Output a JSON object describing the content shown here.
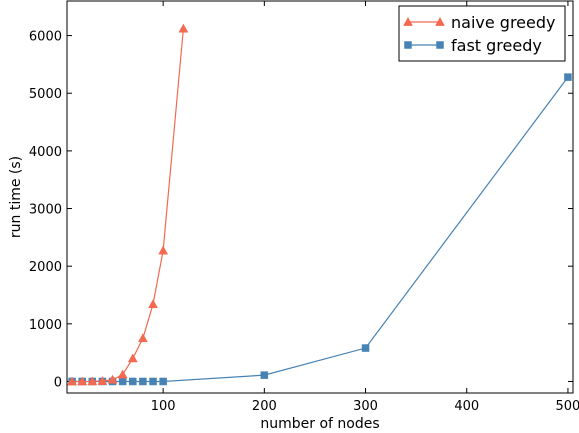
{
  "chart_data": {
    "type": "line",
    "title": "",
    "xlabel": "number of nodes",
    "ylabel": "run time (s)",
    "xlim": [
      5,
      505
    ],
    "ylim": [
      -200,
      6600
    ],
    "xticks": [
      100,
      200,
      300,
      400,
      500
    ],
    "yticks": [
      0,
      1000,
      2000,
      3000,
      4000,
      5000,
      6000
    ],
    "grid": false,
    "legend_position": "top-right",
    "series": [
      {
        "name": "naive greedy",
        "color": "#f4694f",
        "marker": "triangle",
        "x": [
          10,
          20,
          30,
          40,
          50,
          60,
          70,
          80,
          90,
          100,
          120
        ],
        "y": [
          0,
          0,
          2,
          8,
          30,
          120,
          400,
          750,
          1340,
          2270,
          6120
        ]
      },
      {
        "name": "fast greedy",
        "color": "#4682b4",
        "marker": "square",
        "x": [
          10,
          20,
          30,
          40,
          50,
          60,
          70,
          80,
          90,
          100,
          200,
          300,
          500
        ],
        "y": [
          0,
          0,
          0,
          0,
          0,
          0,
          0,
          0,
          0,
          0,
          110,
          580,
          5280
        ]
      }
    ]
  }
}
